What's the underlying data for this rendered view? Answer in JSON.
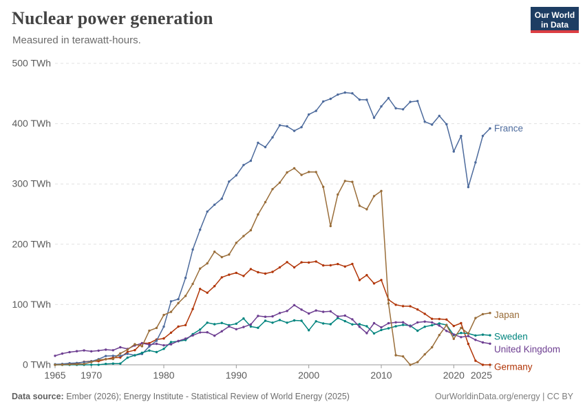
{
  "header": {
    "title": "Nuclear power generation",
    "subtitle": "Measured in terawatt-hours."
  },
  "logo": {
    "line1": "Our World",
    "line2": "in Data",
    "bg_color": "#1d3d63",
    "accent_color": "#dc3e43"
  },
  "chart_data": {
    "type": "line",
    "title": "Nuclear power generation",
    "unit": "TWh",
    "grid": "horizontal-dashed",
    "legend_position": "right-of-line-ends",
    "xlim": [
      1965,
      2025
    ],
    "ylim": [
      0,
      500
    ],
    "x_ticks": [
      {
        "value": 1965,
        "label": "1965"
      },
      {
        "value": 1970,
        "label": "1970"
      },
      {
        "value": 1980,
        "label": "1980"
      },
      {
        "value": 1990,
        "label": "1990"
      },
      {
        "value": 2000,
        "label": "2000"
      },
      {
        "value": 2010,
        "label": "2010"
      },
      {
        "value": 2020,
        "label": "2020"
      },
      {
        "value": 2025,
        "label": "2025"
      }
    ],
    "y_ticks": [
      {
        "value": 0,
        "label": "0 TWh"
      },
      {
        "value": 100,
        "label": "100 TWh"
      },
      {
        "value": 200,
        "label": "200 TWh"
      },
      {
        "value": 300,
        "label": "300 TWh"
      },
      {
        "value": 400,
        "label": "400 TWh"
      },
      {
        "value": 500,
        "label": "500 TWh"
      }
    ],
    "years": [
      1965,
      1966,
      1967,
      1968,
      1969,
      1970,
      1971,
      1972,
      1973,
      1974,
      1975,
      1976,
      1977,
      1978,
      1979,
      1980,
      1981,
      1982,
      1983,
      1984,
      1985,
      1986,
      1987,
      1988,
      1989,
      1990,
      1991,
      1992,
      1993,
      1994,
      1995,
      1996,
      1997,
      1998,
      1999,
      2000,
      2001,
      2002,
      2003,
      2004,
      2005,
      2006,
      2007,
      2008,
      2009,
      2010,
      2011,
      2012,
      2013,
      2014,
      2015,
      2016,
      2017,
      2018,
      2019,
      2020,
      2021,
      2022,
      2023,
      2024,
      2025
    ],
    "series": [
      {
        "name": "Germany",
        "color": "#B13507",
        "label_dy": 3,
        "values": [
          0.1,
          0.3,
          1.1,
          1.9,
          5.0,
          6.0,
          5.9,
          9.2,
          11.9,
          12.1,
          21.4,
          24.3,
          36.0,
          35.9,
          42.0,
          43.7,
          53.3,
          63.5,
          65.9,
          92.6,
          125.9,
          119.5,
          130.5,
          145.1,
          149.4,
          152.5,
          147.4,
          158.8,
          153.5,
          151.2,
          154.1,
          161.6,
          170.3,
          161.6,
          170.0,
          169.6,
          171.3,
          164.8,
          165.1,
          167.1,
          163.0,
          167.4,
          140.5,
          148.8,
          134.9,
          140.6,
          108.0,
          99.5,
          97.3,
          97.1,
          91.8,
          84.6,
          76.3,
          76.0,
          75.1,
          64.4,
          69.1,
          34.7,
          6.7,
          0.0,
          0.0
        ]
      },
      {
        "name": "France",
        "color": "#4C6A9C",
        "label_dy": 0,
        "values": [
          0.9,
          1.5,
          2.6,
          3.1,
          4.5,
          5.7,
          9.4,
          14.6,
          15.0,
          14.7,
          18.3,
          15.8,
          17.9,
          30.5,
          39.9,
          63.4,
          105.2,
          108.9,
          144.2,
          191.2,
          224.1,
          254.1,
          265.5,
          275.5,
          303.9,
          314.1,
          331.3,
          338.4,
          368.2,
          361.1,
          377.2,
          397.3,
          395.5,
          388.0,
          394.2,
          415.2,
          421.1,
          436.8,
          441.1,
          448.2,
          451.5,
          450.2,
          439.7,
          439.5,
          409.7,
          428.5,
          442.4,
          425.4,
          423.7,
          436.1,
          437.4,
          403.2,
          398.4,
          412.9,
          399.0,
          353.8,
          379.4,
          294.7,
          335.6,
          379.7,
          392.0
        ]
      },
      {
        "name": "Sweden",
        "color": "#00847E",
        "label_dy": 2,
        "values": [
          0.0,
          0.0,
          0.0,
          0.0,
          0.0,
          0.1,
          0.1,
          1.5,
          2.1,
          2.0,
          11.9,
          15.9,
          19.9,
          23.8,
          21.1,
          26.5,
          37.7,
          39.1,
          41.1,
          50.9,
          58.4,
          69.9,
          67.3,
          69.4,
          65.6,
          68.2,
          76.8,
          63.5,
          61.4,
          73.1,
          69.9,
          74.3,
          69.9,
          73.6,
          73.1,
          57.3,
          72.1,
          68.6,
          67.4,
          77.6,
          72.4,
          67.0,
          67.4,
          63.9,
          52.0,
          57.8,
          60.5,
          63.9,
          66.2,
          64.9,
          56.5,
          63.1,
          65.6,
          68.6,
          66.1,
          49.2,
          52.9,
          51.9,
          48.6,
          50.0,
          49.0
        ]
      },
      {
        "name": "United Kingdom",
        "color": "#6D3E91",
        "label_dy": 8,
        "values": [
          14.9,
          18.6,
          21.0,
          22.6,
          23.9,
          22.4,
          23.5,
          25.1,
          24.2,
          29.1,
          26.4,
          32.1,
          35.7,
          33.3,
          34.8,
          32.3,
          34.0,
          39.6,
          43.4,
          48.7,
          53.8,
          54.0,
          48.3,
          55.6,
          63.6,
          59.0,
          62.7,
          67.0,
          81.1,
          79.7,
          80.4,
          85.9,
          89.3,
          99.0,
          91.5,
          85.1,
          90.1,
          87.9,
          88.7,
          80.1,
          81.6,
          75.5,
          63.0,
          52.5,
          69.1,
          62.1,
          69.0,
          70.4,
          70.6,
          63.8,
          70.3,
          71.7,
          70.3,
          65.1,
          56.2,
          50.3,
          45.9,
          47.7,
          41.3,
          37.1,
          35.0
        ]
      },
      {
        "name": "Japan",
        "color": "#996D39",
        "label_dy": 3,
        "values": [
          0.0,
          0.3,
          0.7,
          1.0,
          1.4,
          4.6,
          8.0,
          9.5,
          9.7,
          19.0,
          25.1,
          34.1,
          30.8,
          56.6,
          61.2,
          82.6,
          87.8,
          102.4,
          114.3,
          134.2,
          159.6,
          168.3,
          187.6,
          178.7,
          182.9,
          202.3,
          213.5,
          223.2,
          249.3,
          269.7,
          291.3,
          302.2,
          319.1,
          325.9,
          315.0,
          319.9,
          319.7,
          295.1,
          230.1,
          282.4,
          304.9,
          303.4,
          263.8,
          258.0,
          279.8,
          288.2,
          101.8,
          15.9,
          13.9,
          0.0,
          4.4,
          17.3,
          29.1,
          49.3,
          65.7,
          43.0,
          61.3,
          51.9,
          77.5,
          84.0,
          86.0
        ]
      }
    ]
  },
  "footer": {
    "source_label": "Data source:",
    "source_text": " Ember (2026); Energy Institute - Statistical Review of World Energy (2025)",
    "right_text": "OurWorldinData.org/energy | CC BY"
  }
}
